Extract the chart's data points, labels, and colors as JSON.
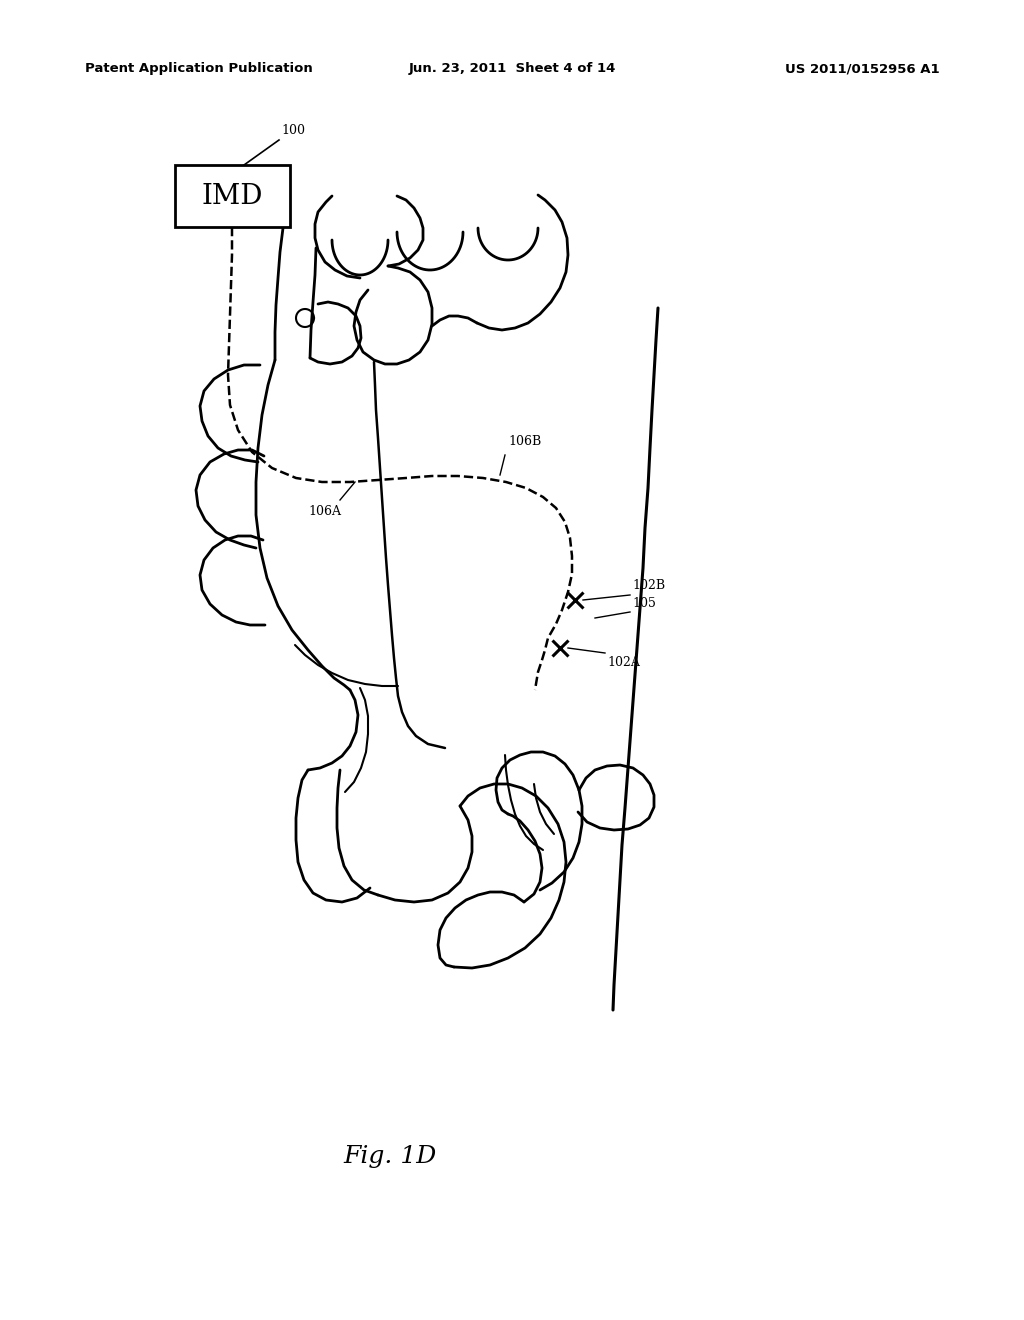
{
  "background_color": "#ffffff",
  "header_left": "Patent Application Publication",
  "header_center": "Jun. 23, 2011  Sheet 4 of 14",
  "header_right": "US 2011/0152956 A1",
  "header_fontsize": 10,
  "imd_label": "IMD",
  "label_100": "100",
  "label_106A": "106A",
  "label_106B": "106B",
  "label_102A": "102A",
  "label_102B": "102B",
  "label_105": "105",
  "fig_label": "Fig. 1D",
  "line_color": "#000000"
}
